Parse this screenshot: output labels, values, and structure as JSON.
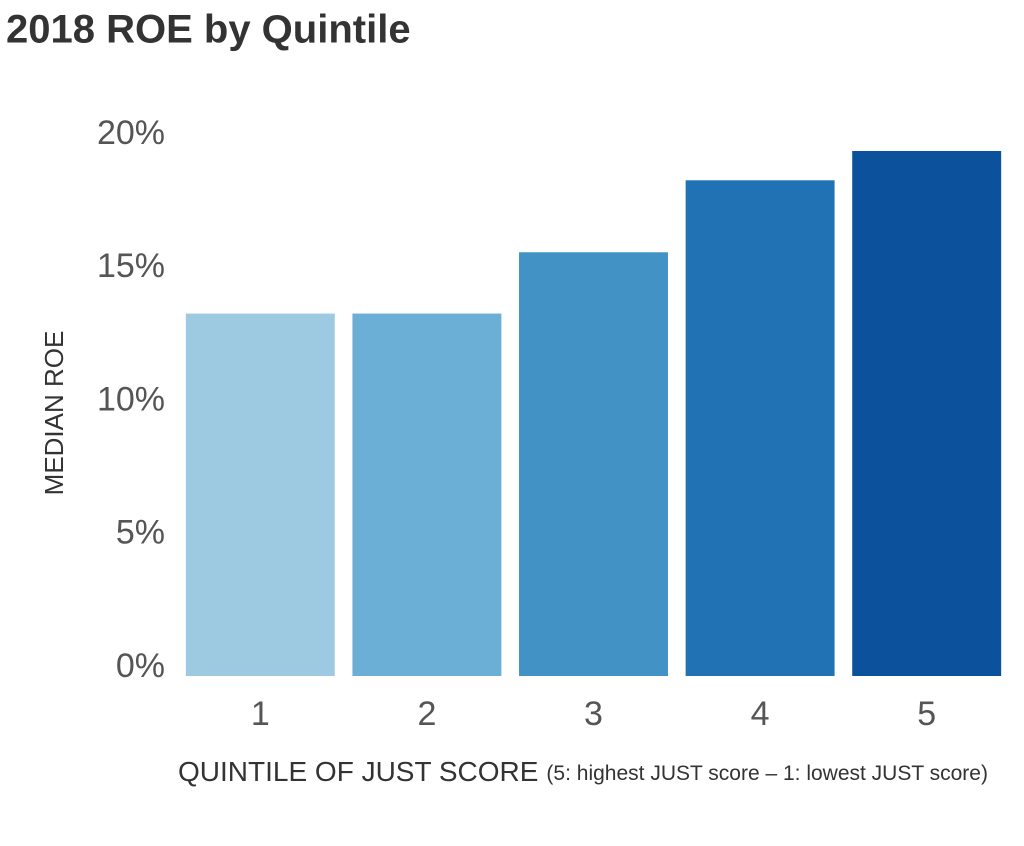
{
  "chart_data": {
    "type": "bar",
    "title": "2018 ROE by Quintile",
    "y_label": "MEDIAN ROE",
    "x_label": "QUINTILE OF JUST SCORE",
    "x_label_note": "(5: highest JUST score – 1: lowest JUST score)",
    "categories": [
      "1",
      "2",
      "3",
      "4",
      "5"
    ],
    "values": [
      13.6,
      13.6,
      15.9,
      18.6,
      19.7
    ],
    "colors": [
      "#9ecae1",
      "#6baed6",
      "#4292c6",
      "#2171b5",
      "#0b519c"
    ],
    "ylim": [
      0,
      20
    ],
    "yticks": [
      {
        "value": 0,
        "label": "0%"
      },
      {
        "value": 5,
        "label": "5%"
      },
      {
        "value": 10,
        "label": "10%"
      },
      {
        "value": 15,
        "label": "15%"
      },
      {
        "value": 20,
        "label": "20%"
      }
    ],
    "grid": false
  }
}
